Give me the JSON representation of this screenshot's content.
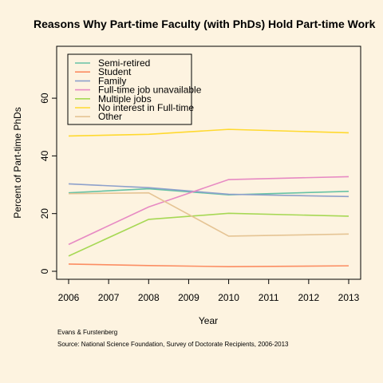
{
  "chart_data": {
    "type": "line",
    "title": "Reasons Why Part-time Faculty (with PhDs) Hold Part-time Work",
    "xlabel": "Year",
    "ylabel": "Percent of Part-time PhDs",
    "xlim": [
      2006,
      2013
    ],
    "ylim": [
      0,
      78
    ],
    "x_ticks": [
      2006,
      2007,
      2008,
      2009,
      2010,
      2011,
      2012,
      2013
    ],
    "y_ticks": [
      0,
      20,
      40,
      60
    ],
    "x": [
      2006,
      2008,
      2010,
      2013
    ],
    "legend_position": "top-left",
    "grid": false,
    "series": [
      {
        "name": "Semi-retired",
        "color": "#66c2a5",
        "values": [
          27.2,
          28.6,
          26.5,
          27.7
        ]
      },
      {
        "name": "Student",
        "color": "#fc8d62",
        "values": [
          2.5,
          2.0,
          1.6,
          1.9
        ]
      },
      {
        "name": "Family",
        "color": "#8da0cb",
        "values": [
          30.3,
          29.0,
          26.7,
          25.9
        ]
      },
      {
        "name": "Full-time job unavailable",
        "color": "#e78ac3",
        "values": [
          9.3,
          22.3,
          31.8,
          32.8
        ]
      },
      {
        "name": "Multiple jobs",
        "color": "#a6d854",
        "values": [
          5.3,
          18.0,
          20.1,
          19.1
        ]
      },
      {
        "name": "No interest in Full-time",
        "color": "#ffd92f",
        "values": [
          46.9,
          47.5,
          49.2,
          48.0
        ]
      },
      {
        "name": "Other",
        "color": "#e5c494",
        "values": [
          26.9,
          27.2,
          12.2,
          12.9
        ]
      }
    ],
    "annotations": [
      "Evans & Furstenberg",
      "Source: National Science Foundation, Survey of Doctorate Recipients, 2006-2013"
    ]
  }
}
